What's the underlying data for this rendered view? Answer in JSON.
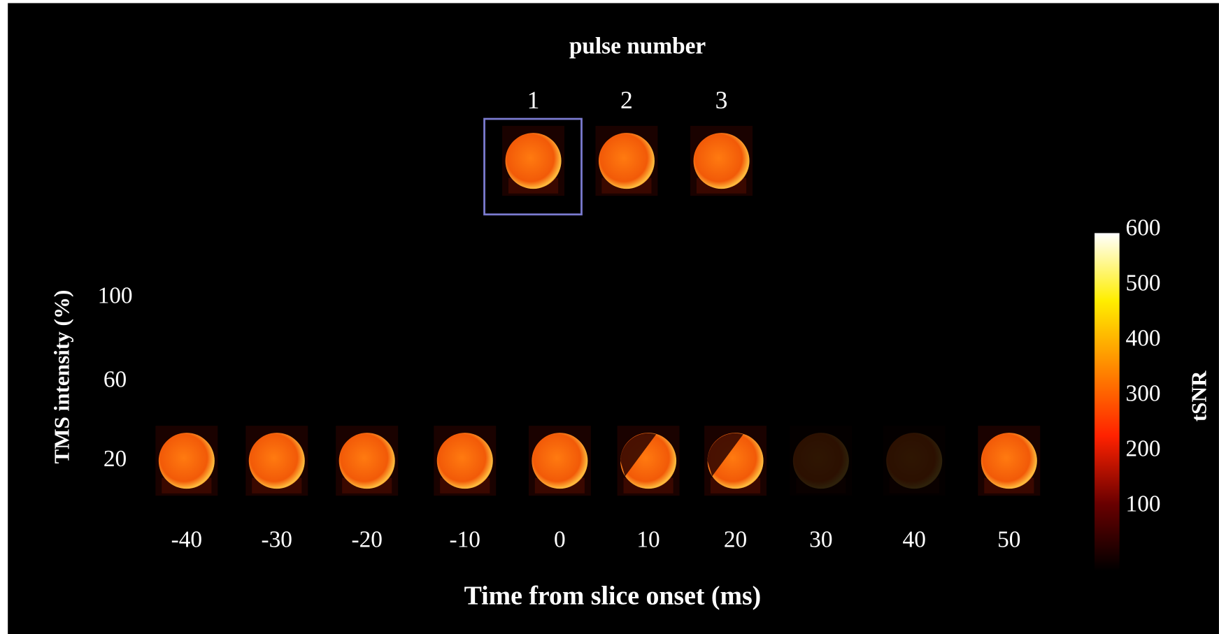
{
  "pulse_number": {
    "title": "pulse number",
    "labels": [
      "1",
      "2",
      "3"
    ]
  },
  "y_axis": {
    "title": "TMS intensity (%)",
    "labels": [
      "100",
      "60",
      "20"
    ]
  },
  "x_axis": {
    "title": "Time from slice onset (ms)",
    "labels": [
      "-40",
      "-30",
      "-20",
      "-10",
      "0",
      "10",
      "20",
      "30",
      "40",
      "50"
    ]
  },
  "colorbar": {
    "title": "tSNR",
    "lim": [
      0,
      600
    ],
    "ticks": [
      100,
      200,
      300,
      400,
      500,
      600
    ]
  }
}
